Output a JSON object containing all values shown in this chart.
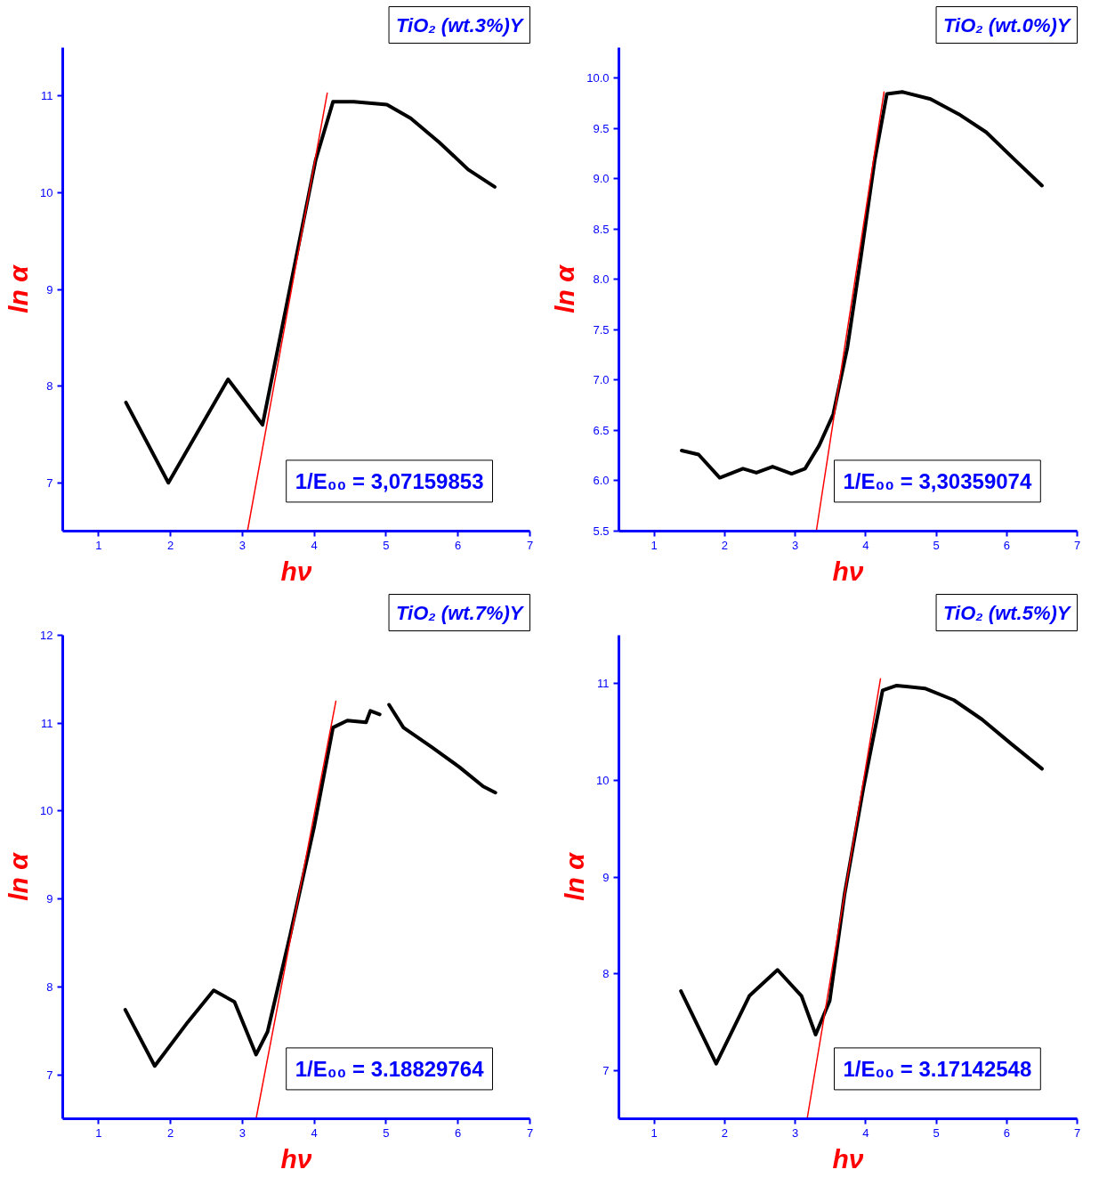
{
  "chart_data": [
    {
      "type": "line",
      "title": "TiO₂ (wt.3%)Y",
      "xlabel": "hν",
      "ylabel": "ln α",
      "xlim": [
        0.5,
        7
      ],
      "ylim": [
        6.5,
        11.5
      ],
      "xticks": [
        1,
        2,
        3,
        4,
        5,
        6,
        7
      ],
      "yticks": [
        7,
        8,
        9,
        10,
        11
      ],
      "grid": false,
      "annotations": [
        "1/E₀₀ = 3,07159853"
      ],
      "series": [
        {
          "color": "#000000",
          "x": [
            1.38,
            1.97,
            2.8,
            3.28,
            4.02,
            4.26,
            4.55,
            5.01,
            5.34,
            5.74,
            6.14,
            6.51
          ],
          "values": [
            7.83,
            7.0,
            8.07,
            7.6,
            10.34,
            10.94,
            10.94,
            10.91,
            10.77,
            10.52,
            10.24,
            10.06
          ]
        },
        {
          "color": "#ff0000",
          "x": [
            3.07,
            4.18
          ],
          "values": [
            6.5,
            11.03
          ]
        }
      ]
    },
    {
      "type": "line",
      "title": "TiO₂ (wt.0%)Y",
      "xlabel": "hν",
      "ylabel": "ln α",
      "xlim": [
        0.5,
        7
      ],
      "ylim": [
        5.5,
        10.3
      ],
      "xticks": [
        1,
        2,
        3,
        4,
        5,
        6,
        7
      ],
      "yticks": [
        5.5,
        {
          "value": 6,
          "label": "6.0"
        },
        6.5,
        {
          "value": 7,
          "label": "7.0"
        },
        7.5,
        {
          "value": 8,
          "label": "8.0"
        },
        8.5,
        {
          "value": 9,
          "label": "9.0"
        },
        9.5,
        {
          "value": 10,
          "label": "10.0"
        }
      ],
      "grid": false,
      "annotations": [
        "1/E₀₀ = 3,30359074"
      ],
      "series": [
        {
          "color": "#000000",
          "x": [
            1.39,
            1.63,
            1.93,
            2.26,
            2.45,
            2.68,
            2.95,
            3.14,
            3.34,
            3.54,
            3.74,
            3.93,
            4.13,
            4.3,
            4.52,
            4.92,
            5.32,
            5.71,
            6.11,
            6.5
          ],
          "values": [
            6.3,
            6.26,
            6.03,
            6.12,
            6.08,
            6.14,
            6.07,
            6.12,
            6.35,
            6.66,
            7.32,
            8.21,
            9.19,
            9.84,
            9.86,
            9.79,
            9.64,
            9.46,
            9.19,
            8.93
          ]
        },
        {
          "color": "#ff0000",
          "x": [
            3.3,
            4.26
          ],
          "values": [
            5.5,
            9.86
          ]
        }
      ]
    },
    {
      "type": "line",
      "title": "TiO₂ (wt.7%)Y",
      "xlabel": "hν",
      "ylabel": "ln α",
      "xlim": [
        0.5,
        7
      ],
      "ylim": [
        6.5,
        12
      ],
      "xticks": [
        1,
        2,
        3,
        4,
        5,
        6,
        7
      ],
      "yticks": [
        7,
        8,
        9,
        10,
        11,
        12
      ],
      "grid": false,
      "annotations": [
        "1/E₀₀ = 3.18829764"
      ],
      "series": [
        {
          "color": "#000000",
          "x": [
            1.37,
            1.78,
            2.24,
            2.6,
            2.89,
            3.19,
            3.35,
            3.67,
            4.0,
            4.26,
            4.46,
            4.72,
            4.78,
            4.91,
            4.97,
            5.04,
            5.24,
            5.63,
            6.02,
            6.35,
            6.52
          ],
          "values": [
            7.74,
            7.1,
            7.6,
            7.96,
            7.83,
            7.23,
            7.49,
            8.61,
            9.83,
            10.95,
            11.03,
            11.01,
            11.14,
            11.1,
            null,
            11.21,
            10.95,
            10.73,
            10.5,
            10.28,
            10.21
          ]
        },
        {
          "color": "#ff0000",
          "x": [
            3.19,
            4.3
          ],
          "values": [
            6.5,
            11.25
          ]
        }
      ]
    },
    {
      "type": "line",
      "title": "TiO₂ (wt.5%)Y",
      "xlabel": "hν",
      "ylabel": "ln α",
      "xlim": [
        0.5,
        7
      ],
      "ylim": [
        6.5,
        11.5
      ],
      "xticks": [
        1,
        2,
        3,
        4,
        5,
        6,
        7
      ],
      "yticks": [
        7,
        8,
        9,
        10,
        11
      ],
      "grid": false,
      "annotations": [
        "1/E₀₀ = 3.17142548"
      ],
      "series": [
        {
          "color": "#000000",
          "x": [
            1.38,
            1.88,
            2.35,
            2.75,
            3.09,
            3.29,
            3.49,
            3.7,
            3.97,
            4.24,
            4.44,
            4.84,
            5.25,
            5.65,
            6.06,
            6.5
          ],
          "values": [
            7.82,
            7.07,
            7.77,
            8.04,
            7.77,
            7.37,
            7.72,
            8.82,
            9.93,
            10.93,
            10.98,
            10.95,
            10.83,
            10.63,
            10.38,
            10.12
          ]
        },
        {
          "color": "#ff0000",
          "x": [
            3.17,
            4.21
          ],
          "values": [
            6.5,
            11.05
          ]
        }
      ]
    }
  ]
}
